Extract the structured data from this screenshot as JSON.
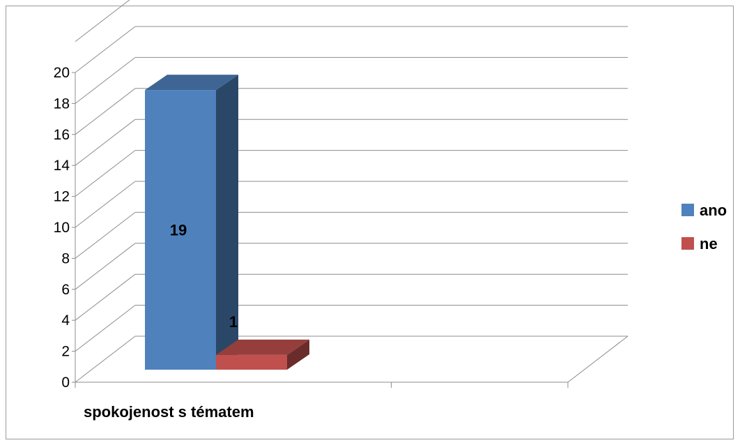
{
  "chart_data": {
    "type": "bar",
    "style": "3d-clustered-column",
    "title": "",
    "xlabel": "",
    "ylabel": "",
    "categories": [
      "spokojenost s tématem"
    ],
    "series": [
      {
        "name": "ano",
        "values": [
          19
        ],
        "color": "#4F81BD"
      },
      {
        "name": "ne",
        "values": [
          1
        ],
        "color": "#C0504D"
      }
    ],
    "ylim": [
      0,
      20
    ],
    "yticks": [
      "0",
      "2",
      "4",
      "6",
      "8",
      "10",
      "12",
      "14",
      "16",
      "18",
      "20"
    ],
    "data_labels": [
      "19",
      "1"
    ],
    "grid": true,
    "legend_position": "right"
  }
}
